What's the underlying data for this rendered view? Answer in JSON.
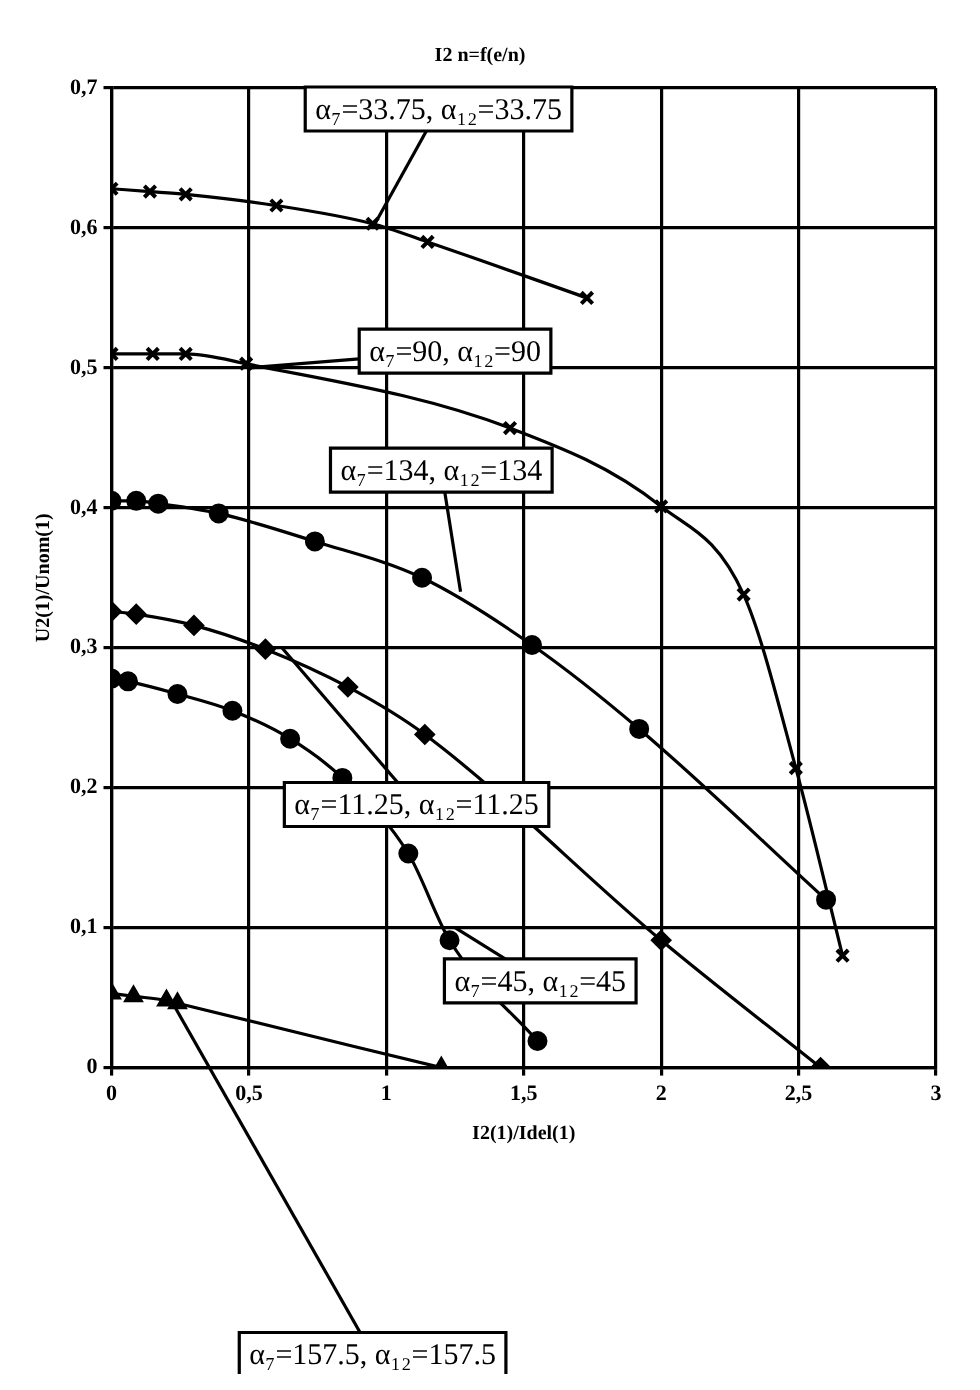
{
  "chart_data": {
    "type": "line",
    "title": "I2 n=f(e/n)",
    "xlabel": "I2(1)/Idel(1)",
    "ylabel": "U2(1)/Unom(1)",
    "xlim": [
      0,
      3
    ],
    "ylim": [
      0,
      0.7
    ],
    "xticks": [
      0,
      {
        "value": 0.5,
        "label": "0,5"
      },
      1,
      {
        "value": 1.5,
        "label": "1,5"
      },
      2,
      {
        "value": 2.5,
        "label": "2,5"
      },
      3
    ],
    "yticks": [
      0,
      {
        "value": 0.1,
        "label": "0,1"
      },
      {
        "value": 0.2,
        "label": "0,2"
      },
      {
        "value": 0.3,
        "label": "0,3"
      },
      {
        "value": 0.4,
        "label": "0,4"
      },
      {
        "value": 0.5,
        "label": "0,5"
      },
      {
        "value": 0.6,
        "label": "0,6"
      },
      {
        "value": 0.7,
        "label": "0,7"
      }
    ],
    "grid": true,
    "legend": false,
    "line_style": "solid",
    "series": [
      {
        "color": "#000000",
        "marker": "cross",
        "x": [
          0,
          0.14,
          0.27,
          0.6,
          0.95,
          1.15,
          1.73
        ],
        "values": [
          0.628,
          0.626,
          0.624,
          0.616,
          0.603,
          0.59,
          0.55
        ]
      },
      {
        "color": "#000000",
        "marker": "cross",
        "x": [
          0,
          0.15,
          0.27,
          0.49,
          1.45,
          2.0,
          2.3,
          2.49,
          2.66
        ],
        "values": [
          0.51,
          0.51,
          0.51,
          0.503,
          0.457,
          0.401,
          0.338,
          0.214,
          0.08
        ]
      },
      {
        "color": "#000000",
        "marker": "circle",
        "x": [
          0,
          0.09,
          0.17,
          0.39,
          0.74,
          1.13,
          1.53,
          1.92,
          2.6
        ],
        "values": [
          0.405,
          0.405,
          0.403,
          0.396,
          0.376,
          0.35,
          0.302,
          0.242,
          0.12
        ]
      },
      {
        "color": "#000000",
        "marker": "diamond",
        "x": [
          0,
          0.09,
          0.3,
          0.56,
          0.86,
          1.14,
          2.0,
          2.58
        ],
        "values": [
          0.326,
          0.324,
          0.316,
          0.299,
          0.272,
          0.238,
          0.091,
          0
        ]
      },
      {
        "color": "#000000",
        "marker": "circle",
        "x": [
          0,
          0.06,
          0.24,
          0.44,
          0.65,
          0.84,
          1.08,
          1.23,
          1.55
        ],
        "values": [
          0.278,
          0.276,
          0.267,
          0.255,
          0.235,
          0.207,
          0.153,
          0.091,
          0.019
        ]
      },
      {
        "color": "#000000",
        "marker": "triangle",
        "x": [
          0,
          0.08,
          0.2,
          0.24,
          1.2
        ],
        "values": [
          0.053,
          0.051,
          0.048,
          0.046,
          0
        ]
      }
    ],
    "annotations": [
      {
        "text": "α₇=33.75, α₁₂=33.75",
        "x": 0.95,
        "y": 0.6
      },
      {
        "text": "α₇=90, α₁₂=90",
        "x": 0.5,
        "y": 0.5
      },
      {
        "text": "α₇=134, α₁₂=134",
        "x": 1.27,
        "y": 0.34
      },
      {
        "text": "α₇=11.25, α₁₂=11.25",
        "x": 0.62,
        "y": 0.3
      },
      {
        "text": "α₇=45, α₁₂=45",
        "x": 1.25,
        "y": 0.1
      },
      {
        "text": "α₇=157.5, α₁₂=157.5",
        "x": 0.22,
        "y": 0.047
      }
    ]
  }
}
